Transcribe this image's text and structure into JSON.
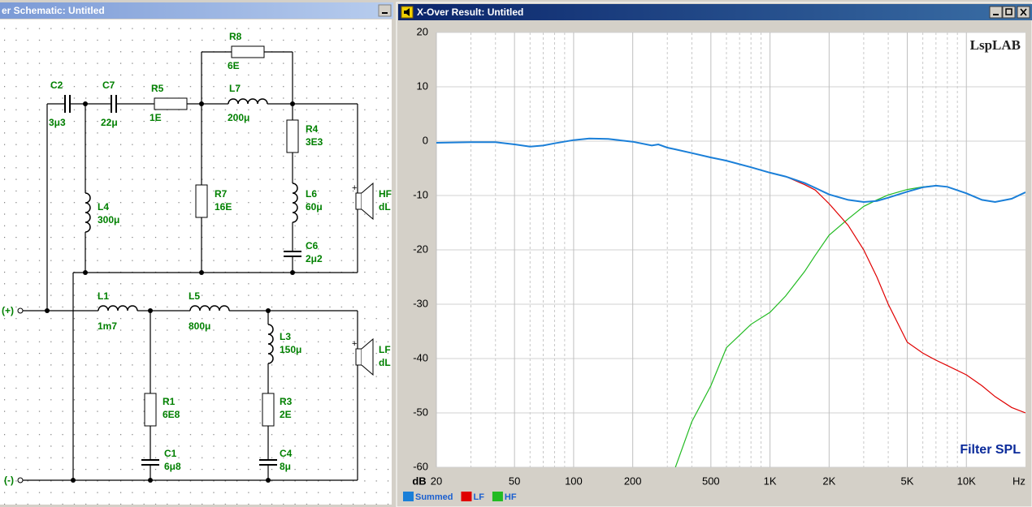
{
  "schematic": {
    "title": "er Schematic: Untitled",
    "polarity": "+",
    "terminals": [
      "(+)",
      "(-)"
    ],
    "components": [
      {
        "name": "C2",
        "value": "3μ3"
      },
      {
        "name": "C7",
        "value": "22μ"
      },
      {
        "name": "R5",
        "value": "1E"
      },
      {
        "name": "R8",
        "value": "6E"
      },
      {
        "name": "L7",
        "value": "200μ"
      },
      {
        "name": "R4",
        "value": "3E3"
      },
      {
        "name": "R7",
        "value": "16E"
      },
      {
        "name": "L6",
        "value": "60μ"
      },
      {
        "name": "C6",
        "value": "2μ2"
      },
      {
        "name": "L4",
        "value": "300μ"
      },
      {
        "name": "HF",
        "value": "dL"
      },
      {
        "name": "L1",
        "value": "1m7"
      },
      {
        "name": "L5",
        "value": "800μ"
      },
      {
        "name": "L3",
        "value": "150μ"
      },
      {
        "name": "R1",
        "value": "6E8"
      },
      {
        "name": "R3",
        "value": "2E"
      },
      {
        "name": "C1",
        "value": "6μ8"
      },
      {
        "name": "C4",
        "value": "8μ"
      },
      {
        "name": "LF",
        "value": "dL"
      }
    ]
  },
  "result_window": {
    "title": "X-Over Result: Untitled"
  },
  "chart_data": {
    "type": "line",
    "title": "Filter SPL",
    "brand": "LspLAB",
    "x_unit": "Hz",
    "y_unit": "dB",
    "log_x": true,
    "grid": true,
    "legend": "bottom-left",
    "xlim": [
      20,
      20000
    ],
    "ylim": [
      -60,
      20
    ],
    "xticks": [
      20,
      50,
      100,
      200,
      500,
      {
        "value": 1000,
        "label": "1K"
      },
      {
        "value": 2000,
        "label": "2K"
      },
      {
        "value": 5000,
        "label": "5K"
      },
      {
        "value": 10000,
        "label": "10K"
      }
    ],
    "minor_xticks": [
      30,
      40,
      60,
      70,
      80,
      90,
      300,
      400,
      600,
      700,
      800,
      900,
      3000,
      4000,
      6000,
      7000,
      8000,
      9000
    ],
    "yticks": [
      -60,
      -50,
      -40,
      -30,
      -20,
      -10,
      0,
      10,
      20
    ],
    "x": [
      20,
      30,
      40,
      50,
      60,
      70,
      80,
      100,
      120,
      150,
      200,
      250,
      270,
      300,
      330,
      400,
      500,
      600,
      800,
      1000,
      1200,
      1500,
      1700,
      2000,
      2500,
      3000,
      3500,
      4000,
      5000,
      6000,
      7000,
      8000,
      10000,
      12000,
      14000,
      17000,
      20000
    ],
    "series": [
      {
        "name": "HF",
        "color": "#22bb22",
        "values": [
          null,
          null,
          null,
          null,
          null,
          null,
          null,
          null,
          null,
          null,
          null,
          null,
          null,
          null,
          -60,
          -51.6,
          -45,
          -38,
          -33.7,
          -31.5,
          -28.5,
          -24,
          -21,
          -17.3,
          -14.3,
          -12,
          -10.8,
          -9.9,
          -8.9,
          -8.4,
          -8.2,
          -8.4,
          -9.6,
          -10.8,
          -11.2,
          -10.6,
          -9.4
        ]
      },
      {
        "name": "LF",
        "color": "#e00000",
        "values": [
          -0.3,
          -0.2,
          -0.2,
          -0.6,
          -1.0,
          -0.8,
          -0.4,
          0.2,
          0.5,
          0.4,
          -0.1,
          -0.8,
          -0.6,
          -1.2,
          -1.5,
          -2.2,
          -3.0,
          -3.6,
          -4.8,
          -5.8,
          -6.5,
          -8.0,
          -9.0,
          -11.5,
          -15.5,
          -20,
          -25,
          -30,
          -37,
          -39,
          -40.3,
          -41.3,
          -43,
          -45,
          -47,
          -49,
          -50
        ]
      },
      {
        "name": "Summed",
        "color": "#1a7fd8",
        "values": [
          -0.3,
          -0.2,
          -0.2,
          -0.6,
          -1.0,
          -0.8,
          -0.4,
          0.2,
          0.5,
          0.4,
          -0.1,
          -0.8,
          -0.6,
          -1.2,
          -1.5,
          -2.2,
          -3.0,
          -3.6,
          -4.8,
          -5.8,
          -6.5,
          -7.7,
          -8.6,
          -9.8,
          -10.8,
          -11.2,
          -11.0,
          -10.4,
          -9.3,
          -8.5,
          -8.2,
          -8.4,
          -9.6,
          -10.8,
          -11.2,
          -10.6,
          -9.4
        ]
      }
    ]
  }
}
